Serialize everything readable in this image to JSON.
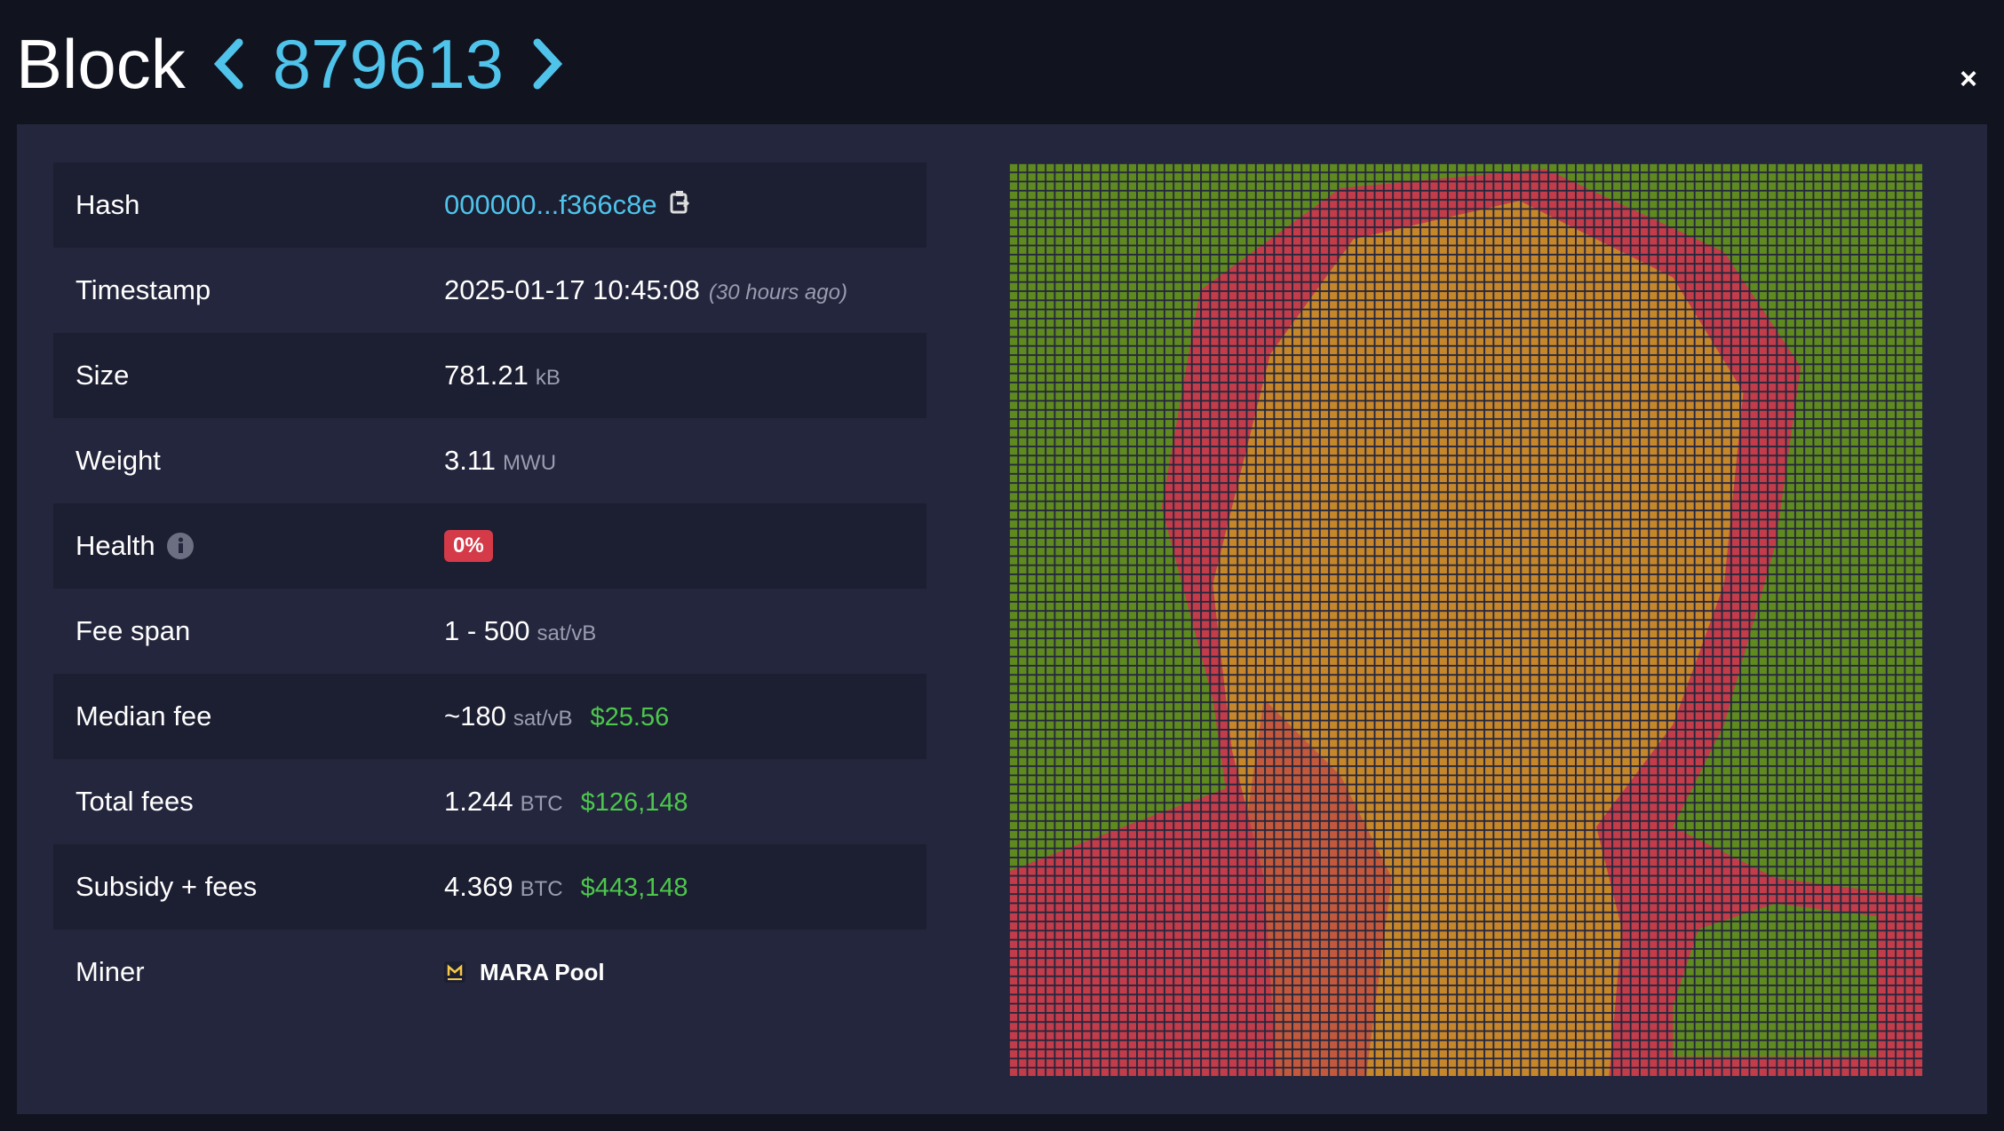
{
  "header": {
    "title": "Block",
    "height": "879613",
    "close": "×"
  },
  "rows": [
    {
      "label": "Hash",
      "value": "000000...f366c8e"
    },
    {
      "label": "Timestamp",
      "value": "2025-01-17 10:45:08",
      "note": "(30 hours ago)"
    },
    {
      "label": "Size",
      "value": "781.21",
      "unit": "kB"
    },
    {
      "label": "Weight",
      "value": "3.11",
      "unit": "MWU"
    },
    {
      "label": "Health",
      "value": "0%"
    },
    {
      "label": "Fee span",
      "value": "1 - 500",
      "unit": "sat/vB"
    },
    {
      "label": "Median fee",
      "value": "~180",
      "unit": "sat/vB",
      "fiat": "$25.56"
    },
    {
      "label": "Total fees",
      "value": "1.244",
      "unit": "BTC",
      "fiat": "$126,148"
    },
    {
      "label": "Subsidy + fees",
      "value": "4.369",
      "unit": "BTC",
      "fiat": "$443,148"
    },
    {
      "label": "Miner",
      "value": "MARA Pool"
    }
  ]
}
